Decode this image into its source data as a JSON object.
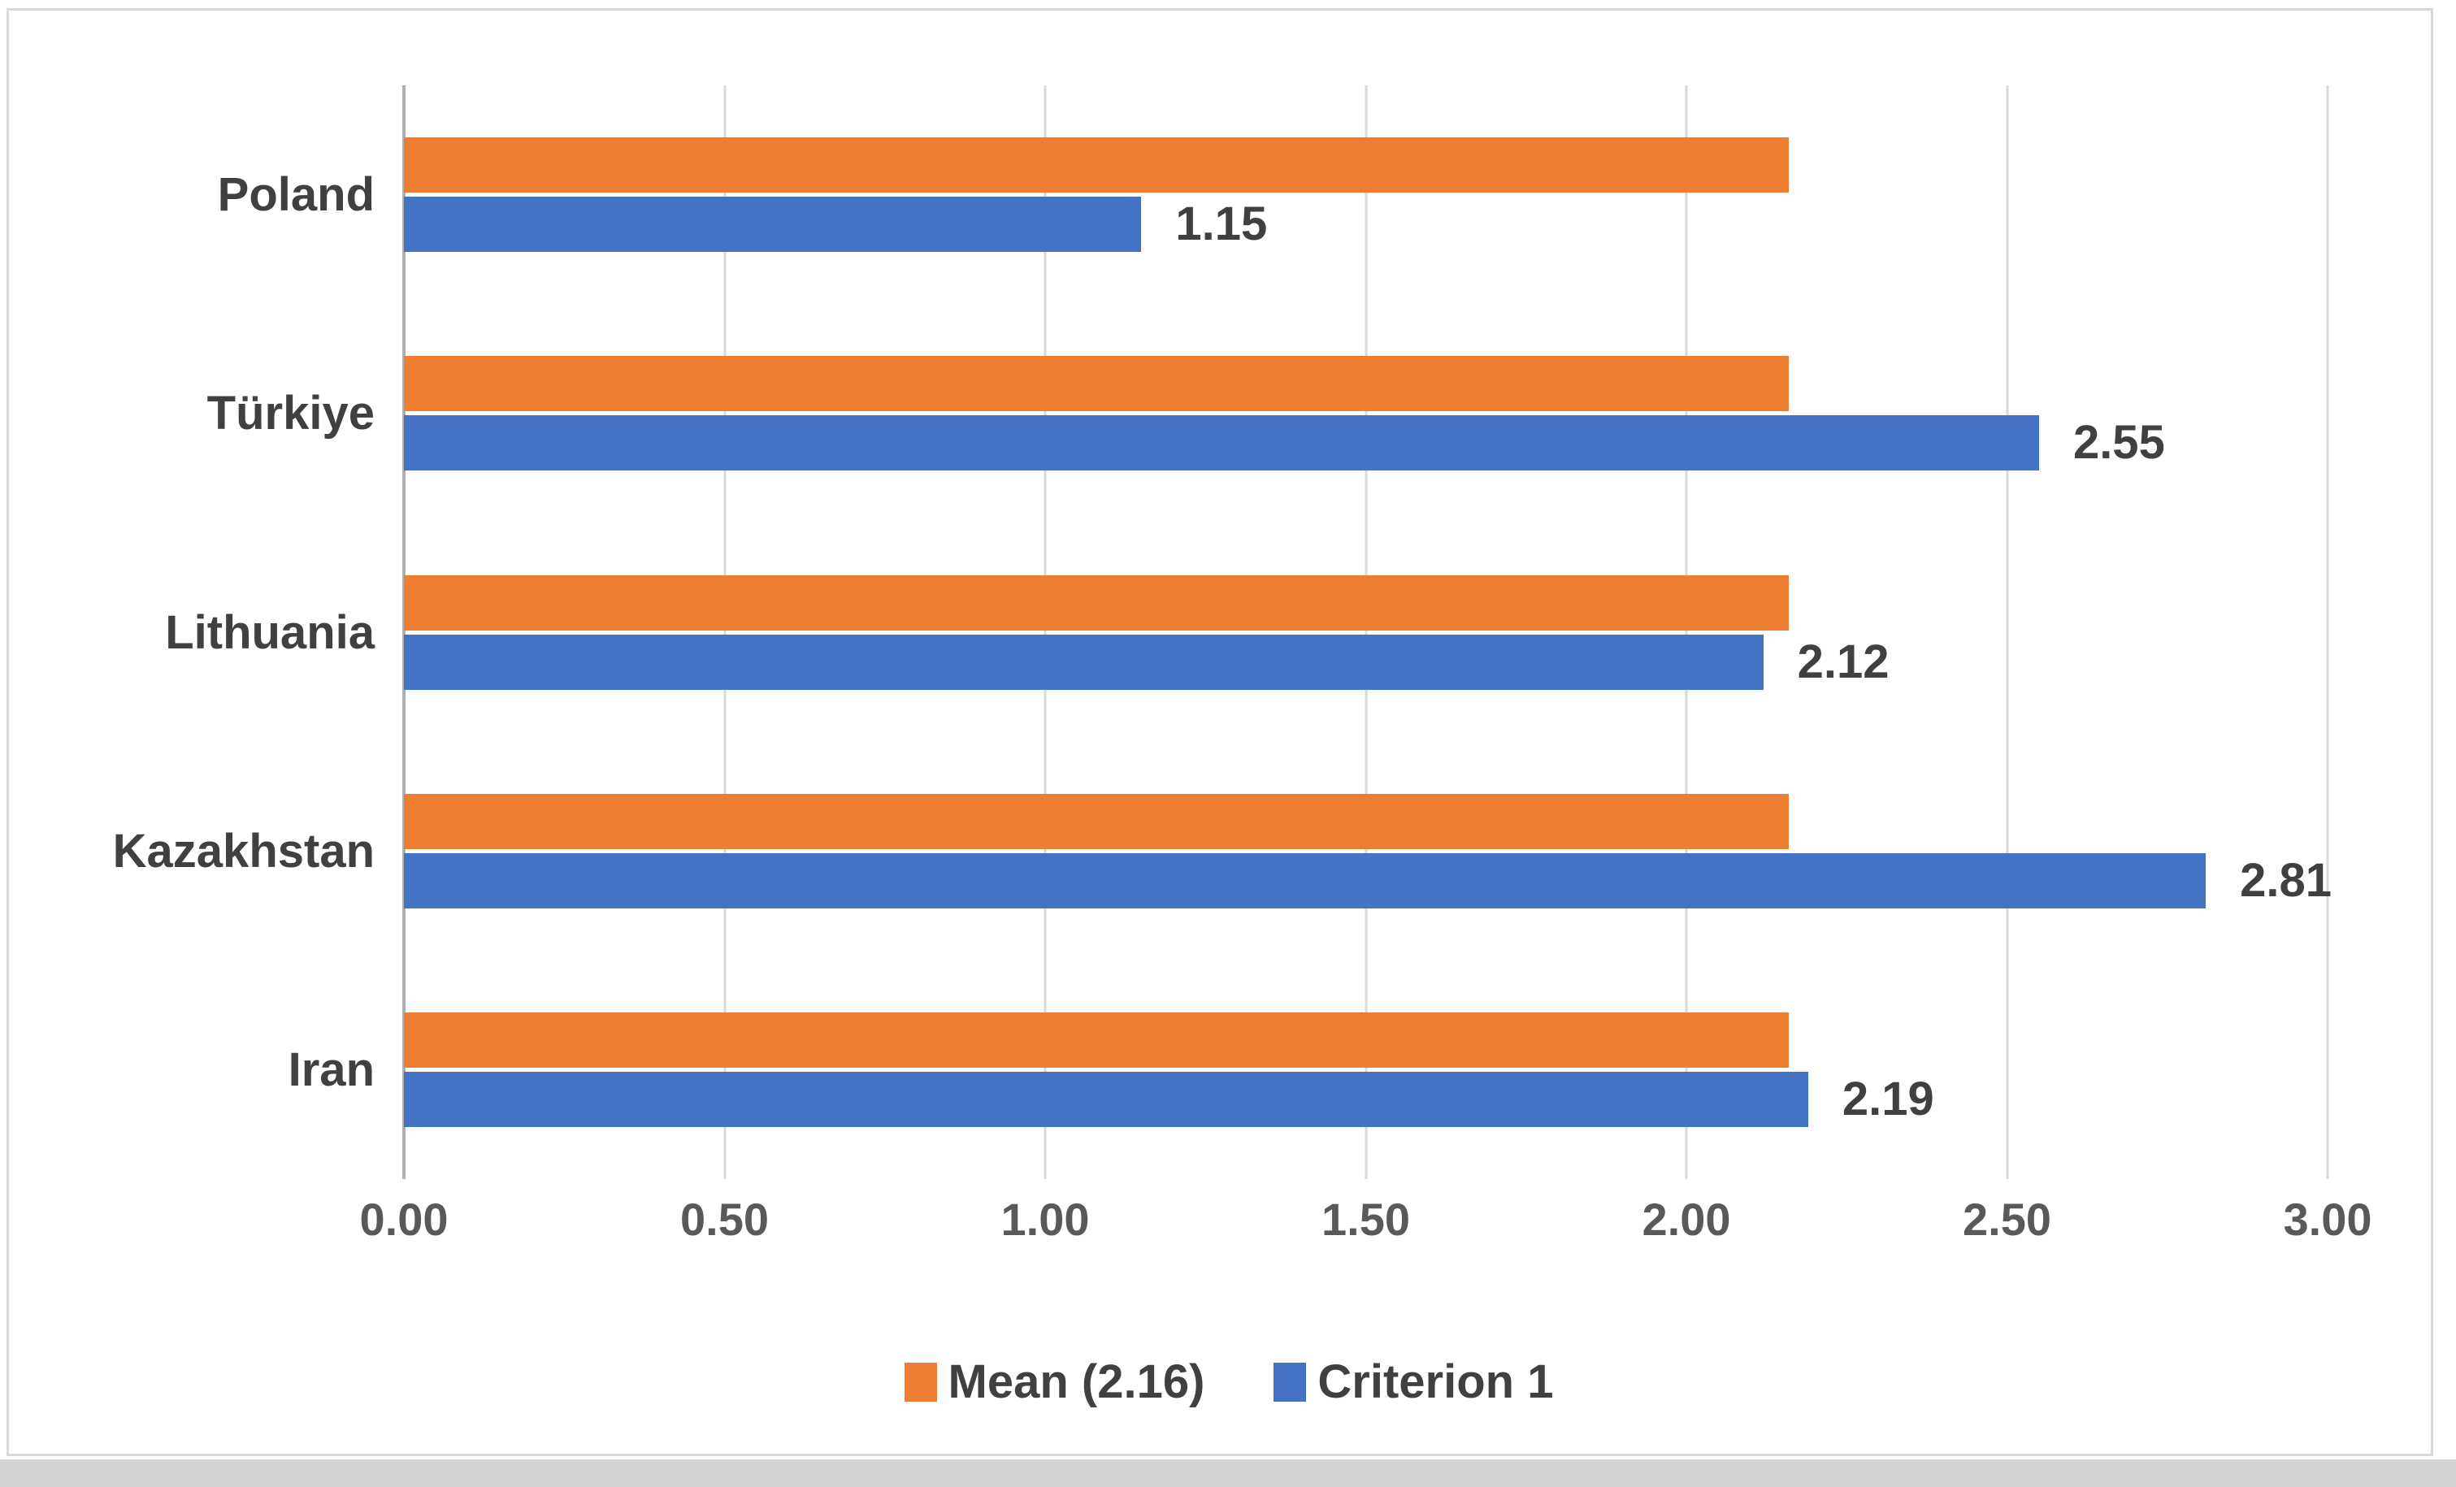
{
  "chart_data": {
    "type": "bar",
    "orientation": "horizontal",
    "title": "",
    "categories": [
      "Poland",
      "Türkiye",
      "Lithuania",
      "Kazakhstan",
      "Iran"
    ],
    "series": [
      {
        "name": "Mean (2.16)",
        "color": "#ED7D31",
        "values": [
          2.16,
          2.16,
          2.16,
          2.16,
          2.16
        ]
      },
      {
        "name": "Criterion 1",
        "color": "#4472C4",
        "values": [
          1.15,
          2.55,
          2.12,
          2.81,
          2.19
        ]
      }
    ],
    "data_labels": {
      "series": "Criterion 1",
      "values": [
        "1.15",
        "2.55",
        "2.12",
        "2.81",
        "2.19"
      ]
    },
    "x_ticks": [
      "0.00",
      "0.50",
      "1.00",
      "1.50",
      "2.00",
      "2.50",
      "3.00"
    ],
    "xlim": [
      0,
      3
    ],
    "grid": true,
    "legend_position": "bottom",
    "legend": [
      {
        "label": "Mean (2.16)",
        "color": "#ED7D31"
      },
      {
        "label": "Criterion 1",
        "color": "#4472C4"
      }
    ]
  },
  "colors": {
    "bar_orange": "#ED7D31",
    "bar_blue": "#4472C4",
    "gridline": "#D9D9D9",
    "axis_line": "#AFAFAF",
    "frame_border": "#D9D9D9",
    "label_text": "#404040",
    "tick_text": "#595959",
    "page_strip": "#D4D4D4",
    "background": "#FFFFFF"
  }
}
